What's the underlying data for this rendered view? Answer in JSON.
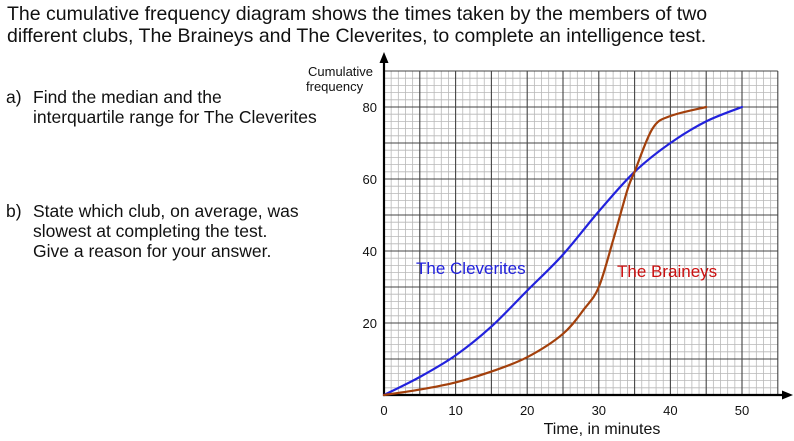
{
  "question": {
    "intro_line1": "The cumulative frequency diagram shows the times taken by the members of two",
    "intro_line2": "different clubs, The Braineys and The Cleverites, to complete an intelligence test.",
    "part_a": {
      "label": "a)",
      "line1": "Find the median and the",
      "line2": "interquartile range for The Cleverites"
    },
    "part_b": {
      "label": "b)",
      "line1": "State which club, on average, was",
      "line2": "slowest at completing the test.",
      "line3": "Give a reason for your answer."
    }
  },
  "chart_data": {
    "type": "line",
    "title": "",
    "xlabel": "Time, in minutes",
    "ylabel": "Cumulative frequency",
    "ylabel_line1": "Cumulative",
    "ylabel_line2": "frequency",
    "xlim": [
      0,
      55
    ],
    "ylim": [
      0,
      90
    ],
    "x_ticks": [
      0,
      10,
      20,
      30,
      40,
      50
    ],
    "y_ticks": [
      20,
      40,
      60,
      80
    ],
    "grid": {
      "on": true,
      "x_minor": 1,
      "x_major": 5,
      "y_minor": 2,
      "y_major": 10
    },
    "legend_position": "inline labels on plot",
    "series": [
      {
        "name": "The Cleverites",
        "color": "#2222dd",
        "label_color": "#2222dd",
        "x": [
          0,
          5,
          10,
          15,
          20,
          25,
          30,
          35,
          40,
          45,
          50
        ],
        "values": [
          0,
          5,
          11,
          19,
          29,
          39,
          51,
          62,
          70,
          76,
          80
        ]
      },
      {
        "name": "The Braineys",
        "color": "#a3400c",
        "label_color": "#cc1111",
        "x": [
          0,
          5,
          10,
          15,
          20,
          25,
          28,
          30,
          32,
          34,
          35,
          37.5,
          40,
          45
        ],
        "values": [
          0,
          1.5,
          3.5,
          6.5,
          10.5,
          17,
          24,
          30,
          43,
          57,
          62,
          74,
          77.5,
          80
        ]
      }
    ]
  }
}
